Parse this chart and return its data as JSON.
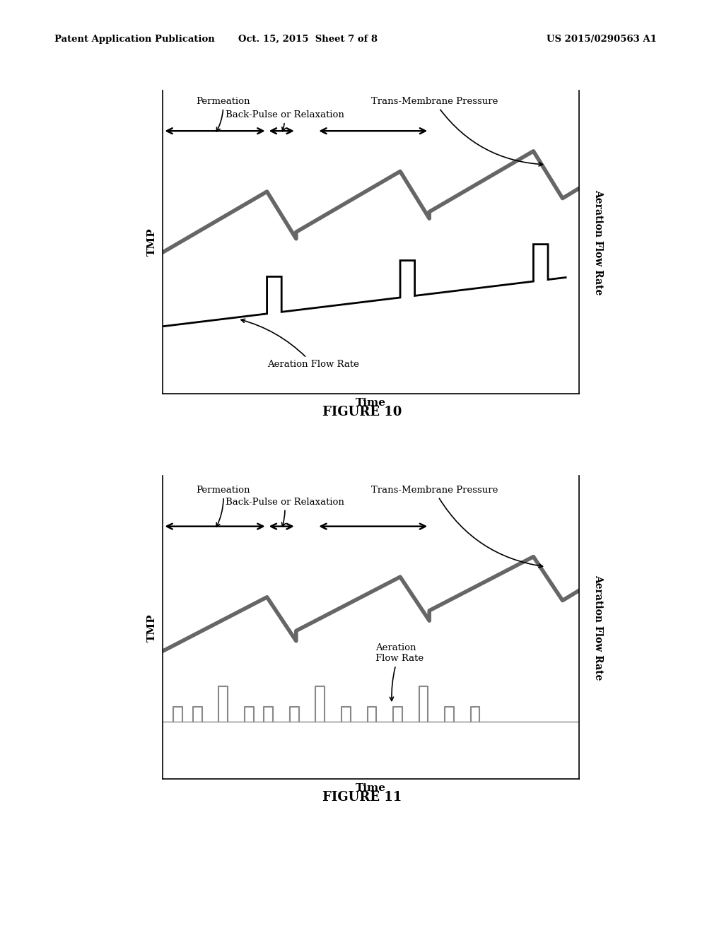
{
  "bg_color": "#ffffff",
  "text_color": "#000000",
  "header_left": "Patent Application Publication",
  "header_center": "Oct. 15, 2015  Sheet 7 of 8",
  "header_right": "US 2015/0290563 A1",
  "figure10_caption": "FIGURE 10",
  "figure11_caption": "FIGURE 11",
  "ylabel_tmp": "TMP",
  "ylabel_aeration": "Aeration Flow Rate",
  "xlabel": "Time",
  "label_permeation": "Permeation",
  "label_backpulse": "Back-Pulse or Relaxation",
  "label_tmp": "Trans-Membrane Pressure",
  "label_aeration10": "Aeration Flow Rate",
  "label_aeration11_line1": "Aeration\nFlow Rate"
}
